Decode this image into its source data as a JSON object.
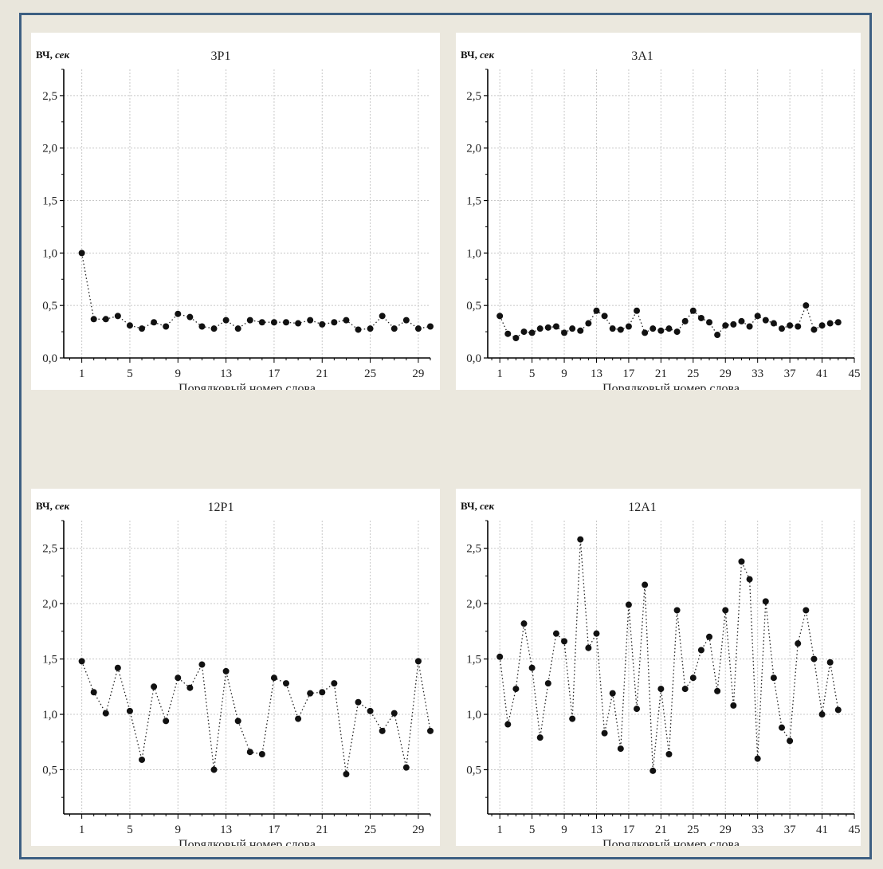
{
  "chart_data": [
    {
      "type": "scatter",
      "title": "3Р1",
      "ylabel_main": "ВЧ,",
      "ylabel_unit": "сек",
      "xlabel": "Порядковый номер слова",
      "ylim": [
        0,
        2.75
      ],
      "xlim": [
        -0.5,
        30
      ],
      "xticks": [
        1,
        5,
        9,
        13,
        17,
        21,
        25,
        29
      ],
      "yticks": [
        0.0,
        0.5,
        1.0,
        1.5,
        2.0,
        2.5
      ],
      "ytick_labels": [
        "0,0",
        "0,5",
        "1,0",
        "1,5",
        "2,0",
        "2,5"
      ],
      "grid": true,
      "x": [
        1,
        2,
        3,
        4,
        5,
        6,
        7,
        8,
        9,
        10,
        11,
        12,
        13,
        14,
        15,
        16,
        17,
        18,
        19,
        20,
        21,
        22,
        23,
        24,
        25,
        26,
        27,
        28,
        29,
        30
      ],
      "values": [
        1.0,
        0.37,
        0.37,
        0.4,
        0.31,
        0.28,
        0.34,
        0.3,
        0.42,
        0.39,
        0.3,
        0.28,
        0.36,
        0.28,
        0.36,
        0.34,
        0.34,
        0.34,
        0.33,
        0.36,
        0.32,
        0.34,
        0.36,
        0.27,
        0.28,
        0.4,
        0.28,
        0.36,
        0.28,
        0.3
      ]
    },
    {
      "type": "scatter",
      "title": "3А1",
      "ylabel_main": "ВЧ,",
      "ylabel_unit": "сек",
      "xlabel": "Порядковый номер слова",
      "ylim": [
        0,
        2.75
      ],
      "xlim": [
        -0.5,
        45
      ],
      "xticks": [
        1,
        5,
        9,
        13,
        17,
        21,
        25,
        29,
        33,
        37,
        41,
        45
      ],
      "yticks": [
        0.0,
        0.5,
        1.0,
        1.5,
        2.0,
        2.5
      ],
      "ytick_labels": [
        "0,0",
        "0,5",
        "1,0",
        "1,5",
        "2,0",
        "2,5"
      ],
      "grid": true,
      "x": [
        1,
        2,
        3,
        4,
        5,
        6,
        7,
        8,
        9,
        10,
        11,
        12,
        13,
        14,
        15,
        16,
        17,
        18,
        19,
        20,
        21,
        22,
        23,
        24,
        25,
        26,
        27,
        28,
        29,
        30,
        31,
        32,
        33,
        34,
        35,
        36,
        37,
        38,
        39,
        40,
        41,
        42,
        43
      ],
      "values": [
        0.4,
        0.23,
        0.19,
        0.25,
        0.24,
        0.28,
        0.29,
        0.3,
        0.24,
        0.28,
        0.26,
        0.33,
        0.45,
        0.4,
        0.28,
        0.27,
        0.3,
        0.45,
        0.24,
        0.28,
        0.26,
        0.28,
        0.25,
        0.35,
        0.45,
        0.38,
        0.34,
        0.22,
        0.31,
        0.32,
        0.35,
        0.3,
        0.4,
        0.36,
        0.33,
        0.28,
        0.31,
        0.3,
        0.5,
        0.27,
        0.31,
        0.33,
        0.34
      ]
    },
    {
      "type": "scatter",
      "title": "12Р1",
      "ylabel_main": "ВЧ,",
      "ylabel_unit": "сек",
      "xlabel": "Порядковый номер слова",
      "ylim": [
        0.1,
        2.75
      ],
      "xlim": [
        -0.5,
        30
      ],
      "xticks": [
        1,
        5,
        9,
        13,
        17,
        21,
        25,
        29
      ],
      "yticks": [
        0.5,
        1.0,
        1.5,
        2.0,
        2.5
      ],
      "ytick_labels": [
        "0,5",
        "1,0",
        "1,5",
        "2,0",
        "2,5"
      ],
      "grid": true,
      "x": [
        1,
        2,
        3,
        4,
        5,
        6,
        7,
        8,
        9,
        10,
        11,
        12,
        13,
        14,
        15,
        16,
        17,
        18,
        19,
        20,
        21,
        22,
        23,
        24,
        25,
        26,
        27,
        28,
        29,
        30
      ],
      "values": [
        1.48,
        1.2,
        1.01,
        1.42,
        1.03,
        0.59,
        1.25,
        0.94,
        1.33,
        1.24,
        1.45,
        0.5,
        1.39,
        0.94,
        0.66,
        0.64,
        1.33,
        1.28,
        0.96,
        1.19,
        1.2,
        1.28,
        0.46,
        1.11,
        1.03,
        0.85,
        1.01,
        0.52,
        1.48,
        0.85
      ]
    },
    {
      "type": "scatter",
      "title": "12А1",
      "ylabel_main": "ВЧ,",
      "ylabel_unit": "сек",
      "xlabel": "Порядковый номер слова",
      "ylim": [
        0.1,
        2.75
      ],
      "xlim": [
        -0.5,
        45
      ],
      "xticks": [
        1,
        5,
        9,
        13,
        17,
        21,
        25,
        29,
        33,
        37,
        41,
        45
      ],
      "yticks": [
        0.5,
        1.0,
        1.5,
        2.0,
        2.5
      ],
      "ytick_labels": [
        "0,5",
        "1,0",
        "1,5",
        "2,0",
        "2,5"
      ],
      "grid": true,
      "x": [
        1,
        2,
        3,
        4,
        5,
        6,
        7,
        8,
        9,
        10,
        11,
        12,
        13,
        14,
        15,
        16,
        17,
        18,
        19,
        20,
        21,
        22,
        23,
        24,
        25,
        26,
        27,
        28,
        29,
        30,
        31,
        32,
        33,
        34,
        35,
        36,
        37,
        38,
        39,
        40,
        41,
        42,
        43
      ],
      "values": [
        1.52,
        0.91,
        1.23,
        1.82,
        1.42,
        0.79,
        1.28,
        1.73,
        1.66,
        0.96,
        2.58,
        1.6,
        1.73,
        0.83,
        1.19,
        0.69,
        1.99,
        1.05,
        2.17,
        0.49,
        1.23,
        0.64,
        1.94,
        1.23,
        1.33,
        1.58,
        1.7,
        1.21,
        1.94,
        1.08,
        2.38,
        2.22,
        0.6,
        2.02,
        1.33,
        0.88,
        0.76,
        1.64,
        1.94,
        1.5,
        1.0,
        1.47,
        1.04
      ]
    }
  ]
}
